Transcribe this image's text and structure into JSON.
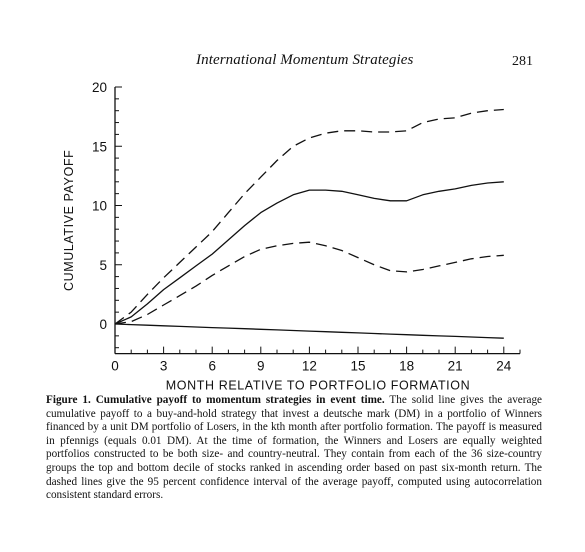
{
  "header": {
    "running_title": "International Momentum Strategies",
    "page_number": "281"
  },
  "chart_data": {
    "type": "line",
    "title": "",
    "xlabel": "MONTH RELATIVE TO PORTFOLIO FORMATION",
    "ylabel": "CUMULATIVE PAYOFF",
    "xlim": [
      0,
      25
    ],
    "ylim": [
      -2.5,
      20
    ],
    "x_ticks": [
      0,
      3,
      6,
      9,
      12,
      15,
      18,
      21,
      24
    ],
    "y_ticks": [
      0,
      5,
      10,
      15,
      20
    ],
    "grid": false,
    "legend": "none",
    "x": [
      0,
      1,
      2,
      3,
      4,
      5,
      6,
      7,
      8,
      9,
      10,
      11,
      12,
      13,
      14,
      15,
      16,
      17,
      18,
      19,
      20,
      21,
      22,
      23,
      24
    ],
    "series": [
      {
        "style": "dashed",
        "color": "#111111",
        "values": [
          0,
          1.0,
          2.5,
          3.9,
          5.2,
          6.5,
          7.8,
          9.4,
          11.0,
          12.4,
          13.8,
          15.0,
          15.7,
          16.1,
          16.3,
          16.3,
          16.2,
          16.2,
          16.3,
          17.0,
          17.3,
          17.4,
          17.8,
          18.0,
          18.1
        ]
      },
      {
        "style": "solid",
        "color": "#111111",
        "values": [
          0,
          0.6,
          1.7,
          2.9,
          3.9,
          4.9,
          5.9,
          7.1,
          8.3,
          9.4,
          10.2,
          10.9,
          11.3,
          11.3,
          11.2,
          10.9,
          10.6,
          10.4,
          10.4,
          10.9,
          11.2,
          11.4,
          11.7,
          11.9,
          12.0
        ]
      },
      {
        "style": "dashed",
        "color": "#111111",
        "values": [
          0,
          0.2,
          0.8,
          1.6,
          2.4,
          3.2,
          4.1,
          4.9,
          5.7,
          6.3,
          6.6,
          6.8,
          6.9,
          6.6,
          6.2,
          5.6,
          5.0,
          4.5,
          4.4,
          4.6,
          4.9,
          5.2,
          5.5,
          5.7,
          5.8
        ]
      },
      {
        "style": "solid",
        "color": "#111111",
        "values": [
          0.0,
          -0.05,
          -0.1,
          -0.15,
          -0.2,
          -0.25,
          -0.3,
          -0.35,
          -0.4,
          -0.45,
          -0.5,
          -0.55,
          -0.6,
          -0.65,
          -0.7,
          -0.75,
          -0.8,
          -0.85,
          -0.9,
          -0.95,
          -1.0,
          -1.05,
          -1.1,
          -1.15,
          -1.2
        ]
      }
    ]
  },
  "caption": {
    "lead": "Figure 1. Cumulative payoff to momentum strategies in event time.",
    "body": "The solid line gives the average cumulative payoff to a buy-and-hold strategy that invest a deutsche mark (DM) in a portfolio of Winners financed by a unit DM portfolio of Losers, in the kth month after portfolio formation. The payoff is measured in pfennigs (equals 0.01 DM). At the time of formation, the Winners and Losers are equally weighted portfolios constructed to be both size- and country-neutral. They contain from each of the 36 size-country groups the top and bottom decile of stocks ranked in ascending order based on past six-month return. The dashed lines give the 95 percent confidence interval of the average payoff, computed using autocorrelation consistent standard errors."
  }
}
